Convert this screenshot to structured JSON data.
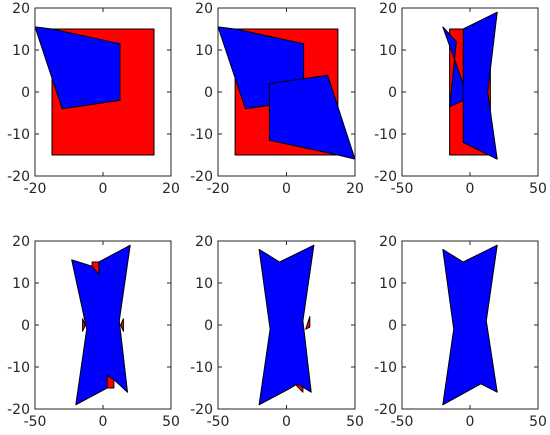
{
  "chart_data": [
    {
      "type": "polygon",
      "xlim": [
        -20,
        20
      ],
      "ylim": [
        -20,
        20
      ],
      "xticks": [
        -20,
        0,
        20
      ],
      "yticks": [
        -20,
        -10,
        0,
        10,
        20
      ],
      "grid": false,
      "series": [
        {
          "color": "#ff0000",
          "polygons": [
            [
              [
                -15,
                -15
              ],
              [
                15,
                -15
              ],
              [
                15,
                15
              ],
              [
                -15,
                15
              ]
            ]
          ]
        },
        {
          "color": "#0000ff",
          "polygons": [
            [
              [
                -20,
                15.5
              ],
              [
                -15,
                15
              ],
              [
                5,
                11.5
              ],
              [
                5,
                -2
              ],
              [
                -12,
                -4
              ]
            ]
          ]
        }
      ]
    },
    {
      "type": "polygon",
      "xlim": [
        -20,
        20
      ],
      "ylim": [
        -20,
        20
      ],
      "xticks": [
        -20,
        0,
        20
      ],
      "yticks": [
        -20,
        -10,
        0,
        10,
        20
      ],
      "grid": false,
      "series": [
        {
          "color": "#ff0000",
          "polygons": [
            [
              [
                -15,
                -15
              ],
              [
                15,
                -15
              ],
              [
                15,
                15
              ],
              [
                -15,
                15
              ]
            ]
          ]
        },
        {
          "color": "#0000ff",
          "polygons": [
            [
              [
                -20,
                15.5
              ],
              [
                -15,
                15
              ],
              [
                5,
                11.5
              ],
              [
                5,
                -2
              ],
              [
                -12,
                -4
              ]
            ],
            [
              [
                20,
                -16
              ],
              [
                15,
                -15
              ],
              [
                -5,
                -11.5
              ],
              [
                -5,
                2
              ],
              [
                12,
                4
              ]
            ]
          ]
        }
      ]
    },
    {
      "type": "polygon",
      "xlim": [
        -50,
        50
      ],
      "ylim": [
        -20,
        20
      ],
      "xticks": [
        -50,
        0,
        50
      ],
      "yticks": [
        -20,
        -10,
        0,
        10,
        20
      ],
      "grid": false,
      "series": [
        {
          "color": "#ff0000",
          "polygons": [
            [
              [
                -15,
                -15
              ],
              [
                15,
                -15
              ],
              [
                15,
                15
              ],
              [
                -15,
                15
              ]
            ]
          ]
        },
        {
          "color": "#0000ff",
          "polygons": [
            [
              [
                -20,
                15.5
              ],
              [
                -10,
                12
              ],
              [
                -15,
                -3.5
              ],
              [
                -5,
                -2
              ],
              [
                -5,
                15
              ],
              [
                20,
                19
              ],
              [
                13,
                0
              ],
              [
                20,
                -16
              ],
              [
                -5,
                -12
              ],
              [
                -5,
                2
              ]
            ]
          ]
        }
      ]
    },
    {
      "type": "polygon",
      "xlim": [
        -50,
        50
      ],
      "ylim": [
        -20,
        20
      ],
      "xticks": [
        -50,
        0,
        50
      ],
      "yticks": [
        -20,
        -10,
        0,
        10,
        20
      ],
      "grid": false,
      "series": [
        {
          "color": "#ff0000",
          "polygons": [
            [
              [
                -8,
                15
              ],
              [
                -3,
                15
              ],
              [
                -3,
                12
              ],
              [
                -8,
                13
              ]
            ],
            [
              [
                8,
                -15
              ],
              [
                3,
                -15
              ],
              [
                3,
                -12
              ],
              [
                8,
                -13
              ]
            ],
            [
              [
                -15,
                1.5
              ],
              [
                -13,
                0
              ],
              [
                -15,
                -1.5
              ]
            ],
            [
              [
                15,
                1.5
              ],
              [
                13,
                0
              ],
              [
                15,
                -1.5
              ]
            ]
          ]
        },
        {
          "color": "#0000ff",
          "polygons": [
            [
              [
                -23,
                15.5
              ],
              [
                -8,
                14
              ],
              [
                -3,
                12
              ],
              [
                -3,
                15
              ],
              [
                20,
                19
              ],
              [
                12,
                1
              ],
              [
                18,
                -16
              ],
              [
                8,
                -13
              ],
              [
                3,
                -12
              ],
              [
                3,
                -15
              ],
              [
                -20,
                -19
              ],
              [
                -12,
                -1
              ]
            ]
          ]
        }
      ]
    },
    {
      "type": "polygon",
      "xlim": [
        -50,
        50
      ],
      "ylim": [
        -20,
        20
      ],
      "xticks": [
        -50,
        0,
        50
      ],
      "yticks": [
        -20,
        -10,
        0,
        10,
        20
      ],
      "grid": false,
      "series": [
        {
          "color": "#ff0000",
          "polygons": [
            [
              [
                6,
                -14
              ],
              [
                12,
                -14.5
              ],
              [
                12,
                -16
              ]
            ],
            [
              [
                14,
                -1
              ],
              [
                17,
                -0.5
              ],
              [
                17,
                2
              ]
            ]
          ]
        },
        {
          "color": "#0000ff",
          "polygons": [
            [
              [
                -20,
                18
              ],
              [
                -5,
                15
              ],
              [
                20,
                19
              ],
              [
                12,
                1
              ],
              [
                18,
                -16
              ],
              [
                8,
                -14
              ],
              [
                3,
                -15
              ],
              [
                -20,
                -19
              ],
              [
                -12,
                -1
              ]
            ]
          ]
        }
      ]
    },
    {
      "type": "polygon",
      "xlim": [
        -50,
        50
      ],
      "ylim": [
        -20,
        20
      ],
      "xticks": [
        -50,
        0,
        50
      ],
      "yticks": [
        -20,
        -10,
        0,
        10,
        20
      ],
      "grid": false,
      "series": [
        {
          "color": "#0000ff",
          "polygons": [
            [
              [
                -20,
                18
              ],
              [
                -5,
                15
              ],
              [
                20,
                19
              ],
              [
                12,
                1
              ],
              [
                20,
                -16
              ],
              [
                8,
                -14
              ],
              [
                -20,
                -19
              ],
              [
                -12,
                -1
              ]
            ]
          ]
        }
      ]
    }
  ]
}
